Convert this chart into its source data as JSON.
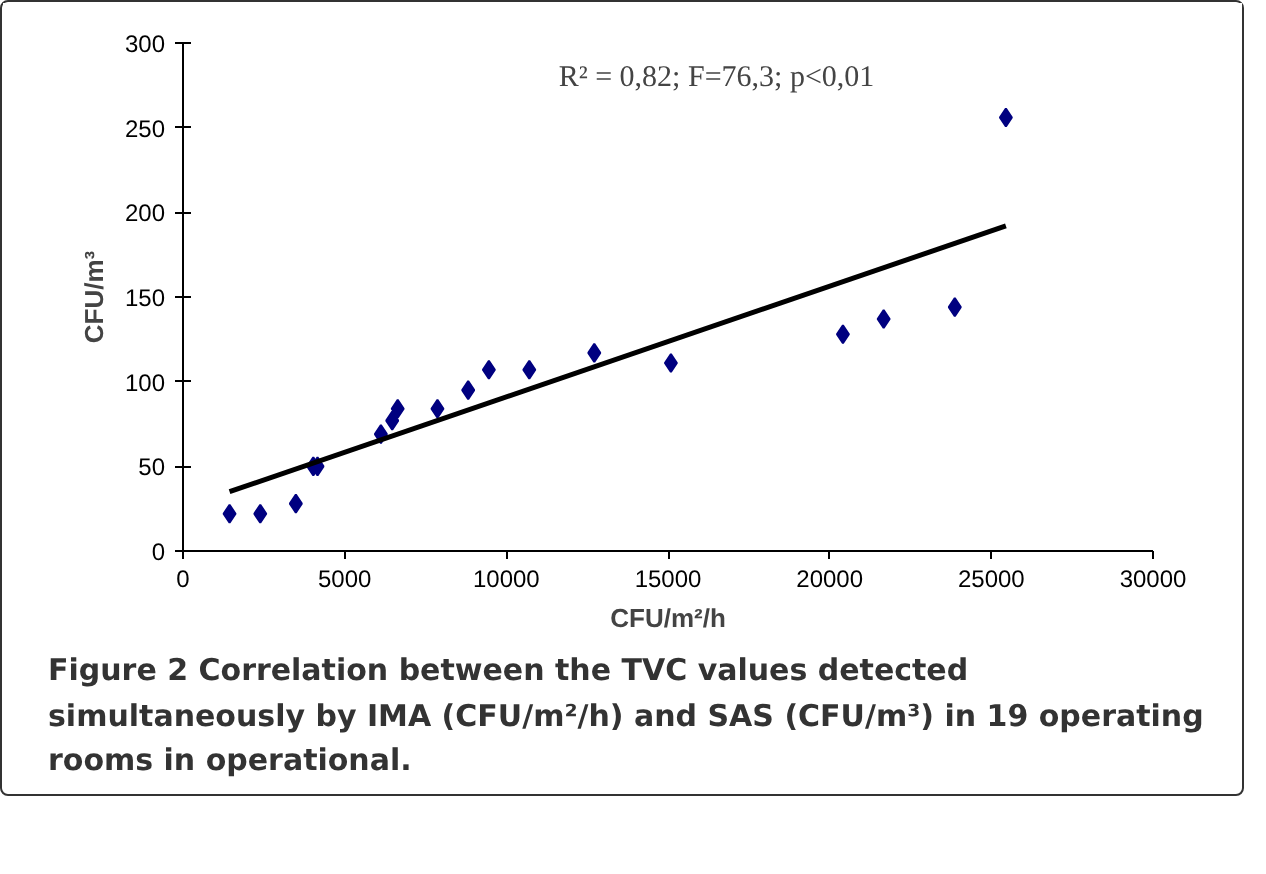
{
  "chart_data": {
    "type": "scatter",
    "xlabel": "CFU/m²/h",
    "ylabel": "CFU/m³",
    "xlim": [
      0,
      30000
    ],
    "ylim": [
      0,
      300
    ],
    "xticks": [
      0,
      5000,
      10000,
      15000,
      20000,
      25000,
      30000
    ],
    "yticks": [
      0,
      50,
      100,
      150,
      200,
      250,
      300
    ],
    "grid": false,
    "series": [
      {
        "marker": "diamond",
        "color": "#000080",
        "x": [
          1440,
          2390,
          3490,
          4030,
          4160,
          6120,
          6470,
          6640,
          7870,
          8820,
          9460,
          10710,
          12720,
          15090,
          20410,
          21670,
          23870,
          25450
        ],
        "values": [
          22,
          22,
          28,
          50,
          50,
          69,
          77,
          84,
          84,
          95,
          107,
          107,
          117,
          111,
          128,
          137,
          144,
          256
        ]
      },
      {
        "type": "line",
        "marker": "none",
        "color": "#000000",
        "x": [
          1440,
          25450
        ],
        "values": [
          35,
          192
        ]
      }
    ],
    "annotations": [
      "R² = 0,82; F=76,3; p<0,01",
      "Figure 2 Correlation between the TVC values detected simultaneously by IMA (CFU/m²/h) and SAS (CFU/m³) in 19 operating rooms in operational."
    ]
  }
}
